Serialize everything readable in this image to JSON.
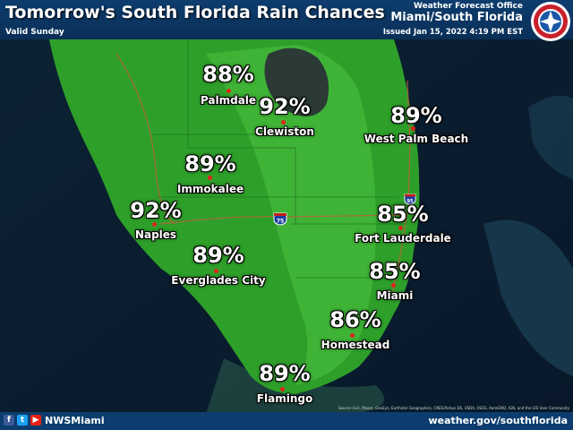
{
  "header": {
    "title": "Tomorrow's South Florida Rain Chances",
    "valid": "Valid Sunday",
    "office_small": "Weather Forecast Office",
    "office_big": "Miami/South Florida",
    "issued": "Issued Jan 15, 2022 4:19 PM EST"
  },
  "logo": {
    "icon": "noaa-nws-logo"
  },
  "cities": [
    {
      "name": "Palmdale",
      "pct": "88%"
    },
    {
      "name": "Clewiston",
      "pct": "92%"
    },
    {
      "name": "West Palm Beach",
      "pct": "89%"
    },
    {
      "name": "Immokalee",
      "pct": "89%"
    },
    {
      "name": "Naples",
      "pct": "92%"
    },
    {
      "name": "Fort Lauderdale",
      "pct": "85%"
    },
    {
      "name": "Everglades City",
      "pct": "89%"
    },
    {
      "name": "Miami",
      "pct": "85%"
    },
    {
      "name": "Homestead",
      "pct": "86%"
    },
    {
      "name": "Flamingo",
      "pct": "89%"
    }
  ],
  "highways": {
    "i75": "75",
    "i95": "95"
  },
  "credit": "Source: Esri, Maxar, GeoEye, Earthstar Geographics, CNES/Airbus DS, USDA, USGS, AeroGRID, IGN, and the GIS User Community",
  "footer": {
    "handle": "NWSMiami",
    "url": "weather.gov/southflorida",
    "social_icons": [
      "facebook-icon",
      "twitter-icon",
      "youtube-icon"
    ]
  },
  "colors": {
    "land_green": "#2ea02a",
    "light_green": "#4fc23f",
    "header_blue": "#0d3d6e",
    "dot_red": "#e0241b"
  }
}
